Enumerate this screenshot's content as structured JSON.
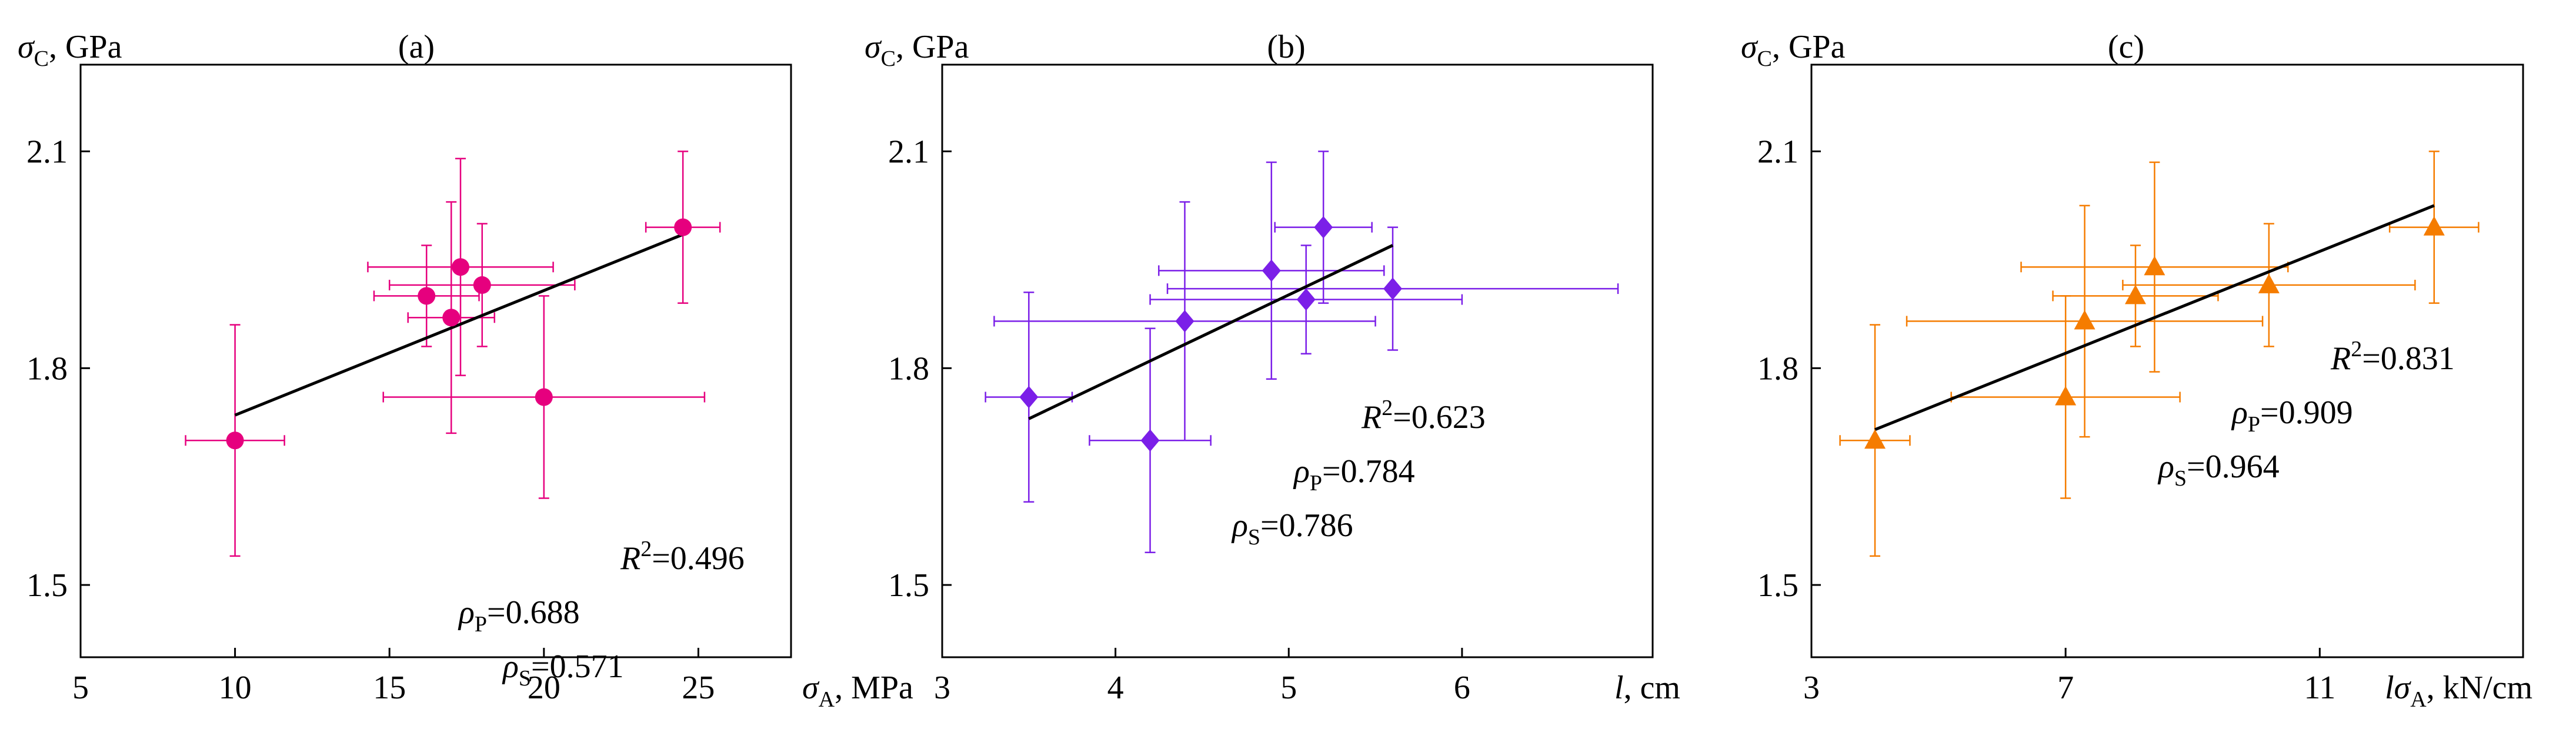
{
  "chart_data": [
    {
      "type": "scatter",
      "panel_label": "(a)",
      "color": "#e6007e",
      "marker": "circle",
      "ylabel_sym": "σ",
      "ylabel_sub": "C",
      "ylabel_unit": ", GPa",
      "xlabel_sym": "σ",
      "xlabel_sub": "A",
      "xlabel_unit": ", MPa",
      "xlim": [
        5,
        28
      ],
      "ylim": [
        1.4,
        2.22
      ],
      "xticks": [
        5,
        10,
        15,
        20,
        25
      ],
      "xtick_labels": [
        "5",
        "10",
        "15",
        "20",
        "25"
      ],
      "yticks": [
        1.5,
        1.8,
        2.1
      ],
      "ytick_labels": [
        "1.5",
        "1.8",
        "2.1"
      ],
      "points": [
        {
          "x": 10.0,
          "y": 1.7,
          "xerr": 1.6,
          "yerr": 0.16
        },
        {
          "x": 16.2,
          "y": 1.9,
          "xerr": 1.7,
          "yerr": 0.07
        },
        {
          "x": 17.0,
          "y": 1.87,
          "xerr": 1.4,
          "yerr": 0.16
        },
        {
          "x": 17.3,
          "y": 1.94,
          "xerr": 3.0,
          "yerr": 0.15
        },
        {
          "x": 18.0,
          "y": 1.915,
          "xerr": 3.0,
          "yerr": 0.085
        },
        {
          "x": 20.0,
          "y": 1.76,
          "xerr": 5.2,
          "yerr": 0.14
        },
        {
          "x": 24.5,
          "y": 1.995,
          "xerr": 1.2,
          "yerr": 0.105
        }
      ],
      "fit": {
        "x": [
          10.0,
          24.5
        ],
        "y": [
          1.735,
          1.985
        ]
      },
      "stats": [
        {
          "sym": "R",
          "sub": "",
          "sup": "2",
          "value": "=0.496"
        },
        {
          "sym": "ρ",
          "sub": "P",
          "sup": "",
          "value": "=0.688"
        },
        {
          "sym": "ρ",
          "sub": "S",
          "sup": "",
          "value": "=0.571"
        }
      ]
    },
    {
      "type": "scatter",
      "panel_label": "(b)",
      "color": "#7b1fe8",
      "marker": "diamond",
      "ylabel_sym": "σ",
      "ylabel_sub": "C",
      "ylabel_unit": ", GPa",
      "xlabel_sym": "l",
      "xlabel_sub": "",
      "xlabel_unit": ", cm",
      "xlim": [
        3,
        7.1
      ],
      "ylim": [
        1.4,
        2.22
      ],
      "xticks": [
        3,
        4,
        5,
        6
      ],
      "xtick_labels": [
        "3",
        "4",
        "5",
        "6"
      ],
      "yticks": [
        1.5,
        1.8,
        2.1
      ],
      "ytick_labels": [
        "1.5",
        "1.8",
        "2.1"
      ],
      "points": [
        {
          "x": 3.5,
          "y": 1.76,
          "xerr": 0.25,
          "yerr": 0.145
        },
        {
          "x": 4.2,
          "y": 1.7,
          "xerr": 0.35,
          "yerr": 0.155
        },
        {
          "x": 4.4,
          "y": 1.865,
          "xerr": 1.1,
          "yerr": 0.165
        },
        {
          "x": 4.9,
          "y": 1.935,
          "xerr": 0.65,
          "yerr": 0.15
        },
        {
          "x": 5.1,
          "y": 1.895,
          "xerr": 0.9,
          "yerr": 0.075
        },
        {
          "x": 5.2,
          "y": 1.995,
          "xerr": 0.28,
          "yerr": 0.105
        },
        {
          "x": 5.6,
          "y": 1.91,
          "xerr": 1.3,
          "yerr": 0.085
        }
      ],
      "fit": {
        "x": [
          3.5,
          5.6
        ],
        "y": [
          1.73,
          1.97
        ]
      },
      "stats": [
        {
          "sym": "R",
          "sub": "",
          "sup": "2",
          "value": "=0.623"
        },
        {
          "sym": "ρ",
          "sub": "P",
          "sup": "",
          "value": "=0.784"
        },
        {
          "sym": "ρ",
          "sub": "S",
          "sup": "",
          "value": "=0.786"
        }
      ]
    },
    {
      "type": "scatter",
      "panel_label": "(c)",
      "color": "#f57c00",
      "marker": "triangle",
      "ylabel_sym": "σ",
      "ylabel_sub": "C",
      "ylabel_unit": ", GPa",
      "xlabel_sym": "lσ",
      "xlabel_sub": "A",
      "xlabel_unit": ", kN/cm",
      "xlim": [
        3,
        14.2
      ],
      "ylim": [
        1.4,
        2.22
      ],
      "xticks": [
        3,
        7,
        11
      ],
      "xtick_labels": [
        "3",
        "7",
        "11"
      ],
      "yticks": [
        1.5,
        1.8,
        2.1
      ],
      "ytick_labels": [
        "1.5",
        "1.8",
        "2.1"
      ],
      "points": [
        {
          "x": 4.0,
          "y": 1.7,
          "xerr": 0.55,
          "yerr": 0.16
        },
        {
          "x": 7.0,
          "y": 1.76,
          "xerr": 1.8,
          "yerr": 0.14
        },
        {
          "x": 7.3,
          "y": 1.865,
          "xerr": 2.8,
          "yerr": 0.16
        },
        {
          "x": 8.1,
          "y": 1.9,
          "xerr": 1.3,
          "yerr": 0.07
        },
        {
          "x": 8.4,
          "y": 1.94,
          "xerr": 2.1,
          "yerr": 0.145
        },
        {
          "x": 10.2,
          "y": 1.915,
          "xerr": 2.3,
          "yerr": 0.085
        },
        {
          "x": 12.8,
          "y": 1.995,
          "xerr": 0.7,
          "yerr": 0.105
        }
      ],
      "fit": {
        "x": [
          4.0,
          12.8
        ],
        "y": [
          1.715,
          2.025
        ]
      },
      "stats": [
        {
          "sym": "R",
          "sub": "",
          "sup": "2",
          "value": "=0.831"
        },
        {
          "sym": "ρ",
          "sub": "P",
          "sup": "",
          "value": "=0.909"
        },
        {
          "sym": "ρ",
          "sub": "S",
          "sup": "",
          "value": "=0.964"
        }
      ]
    }
  ]
}
